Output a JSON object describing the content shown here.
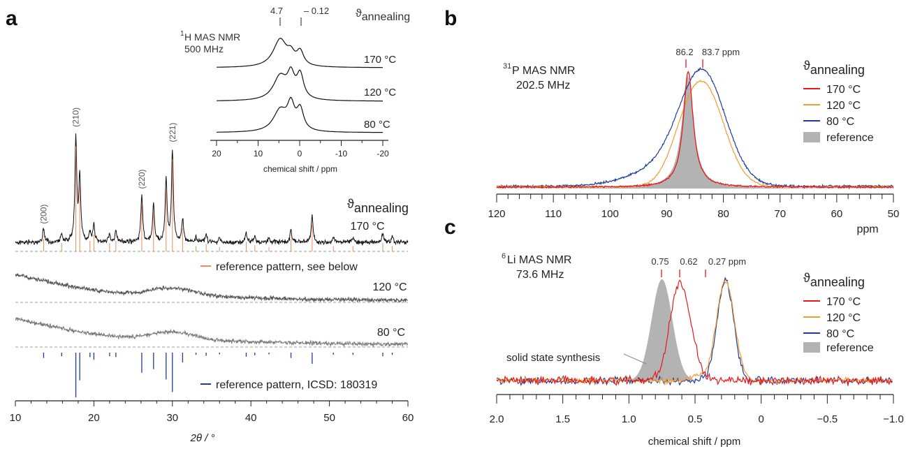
{
  "panels": {
    "a": {
      "letter": "a",
      "xlabel": "2θ / °",
      "annealing_label": "ϑ",
      "annealing_sub": "annealing",
      "traces": [
        "170 °C",
        "120 °C",
        "80 °C"
      ],
      "ref_label_1": "reference pattern, see below",
      "ref_label_2": "reference pattern, ICSD: 180319",
      "xticks": [
        "10",
        "20",
        "30",
        "40",
        "50",
        "60"
      ],
      "hkl": [
        "(200)",
        "(210)",
        "(220)",
        "(221)"
      ],
      "inset": {
        "title_sup": "1",
        "title": "H MAS NMR",
        "freq": "500 MHz",
        "annealing_label": "ϑ",
        "annealing_sub": "annealing",
        "traces": [
          "170 °C",
          "120 °C",
          "80 °C"
        ],
        "peak_labels": [
          "4.7",
          "– 0.12"
        ],
        "xlabel": "chemical shift / ppm",
        "xticks": [
          "20",
          "10",
          "0",
          "-10",
          "-20"
        ]
      }
    },
    "b": {
      "letter": "b",
      "title_sup": "31",
      "title": "P MAS NMR",
      "freq": "202.5 MHz",
      "peak_labels": [
        "86.2",
        "83.7 ppm"
      ],
      "annealing_label": "ϑ",
      "annealing_sub": "annealing",
      "legend": [
        "170 °C",
        "120 °C",
        " 80 °C",
        "reference"
      ],
      "xticks": [
        "120",
        "110",
        "100",
        "90",
        "80",
        "70",
        "60",
        "50"
      ],
      "xunit": "ppm"
    },
    "c": {
      "letter": "c",
      "title_sup": "6",
      "title": "Li MAS NMR",
      "freq": "73.6 MHz",
      "peak_labels": [
        "0.75",
        "0.62",
        "0.27 ppm"
      ],
      "annotation": "solid state synthesis",
      "annealing_label": "ϑ",
      "annealing_sub": "annealing",
      "legend": [
        "170 °C",
        "120 °C",
        " 80 °C",
        "reference"
      ],
      "xticks": [
        "2.0",
        "1.5",
        "1.0",
        "0.5",
        "0",
        "−0.5",
        "−1.0"
      ],
      "xlabel": "chemical shift / ppm"
    }
  },
  "colors": {
    "c170": "#e41a1c",
    "c120": "#f39c32",
    "c80": "#1f3c99",
    "reference_fill": "#b3b3b3",
    "xrd_orange": "#f08a5d",
    "xrd_blue": "#1f3c99"
  },
  "chart_data": [
    {
      "type": "line",
      "panel": "a",
      "xlabel": "2θ / °",
      "xlim": [
        10,
        60
      ],
      "series": [
        {
          "name": "170 °C",
          "peaks_2theta": [
            13.6,
            17.7,
            18.2,
            20.0,
            22.0,
            22.8,
            26.1,
            27.6,
            29.2,
            30.0,
            31.3,
            34.3,
            39.4,
            40.5,
            45.1,
            47.8,
            56.8
          ]
        },
        {
          "name": "120 °C",
          "profile": "amorphous"
        },
        {
          "name": "80 °C",
          "profile": "amorphous"
        }
      ],
      "reference_hkl": [
        {
          "hkl": "(200)",
          "x": 13.6
        },
        {
          "hkl": "(210)",
          "x": 17.7
        },
        {
          "hkl": "(220)",
          "x": 26.1
        },
        {
          "hkl": "(221)",
          "x": 30.0
        }
      ],
      "reference_pattern": [
        {
          "x": 13.6,
          "i": 0.12
        },
        {
          "x": 15.9,
          "i": 0.08
        },
        {
          "x": 17.7,
          "i": 1.0
        },
        {
          "x": 18.2,
          "i": 0.62
        },
        {
          "x": 19.5,
          "i": 0.1
        },
        {
          "x": 20.0,
          "i": 0.16
        },
        {
          "x": 22.0,
          "i": 0.08
        },
        {
          "x": 22.8,
          "i": 0.1
        },
        {
          "x": 26.1,
          "i": 0.45
        },
        {
          "x": 27.6,
          "i": 0.37
        },
        {
          "x": 29.2,
          "i": 0.6
        },
        {
          "x": 30.0,
          "i": 0.88
        },
        {
          "x": 31.3,
          "i": 0.22
        },
        {
          "x": 33.0,
          "i": 0.05
        },
        {
          "x": 34.3,
          "i": 0.07
        },
        {
          "x": 36.0,
          "i": 0.04
        },
        {
          "x": 39.4,
          "i": 0.09
        },
        {
          "x": 40.5,
          "i": 0.06
        },
        {
          "x": 42.3,
          "i": 0.04
        },
        {
          "x": 45.1,
          "i": 0.12
        },
        {
          "x": 47.8,
          "i": 0.25
        },
        {
          "x": 50.5,
          "i": 0.05
        },
        {
          "x": 53.0,
          "i": 0.05
        },
        {
          "x": 56.8,
          "i": 0.08
        },
        {
          "x": 58.0,
          "i": 0.05
        }
      ]
    },
    {
      "type": "line",
      "panel": "a-inset",
      "title": "1H MAS NMR 500 MHz",
      "xlabel": "chemical shift / ppm",
      "xlim": [
        20,
        -20
      ],
      "series": [
        {
          "name": "170 °C",
          "peaks_ppm": [
            4.7,
            2.0,
            -0.12
          ]
        },
        {
          "name": "120 °C",
          "peaks_ppm": [
            4.7,
            2.0,
            -0.12
          ]
        },
        {
          "name": "80 °C",
          "peaks_ppm": [
            4.7,
            2.0,
            -0.12
          ]
        }
      ]
    },
    {
      "type": "line",
      "panel": "b",
      "title": "31P MAS NMR 202.5 MHz",
      "xlabel": "ppm",
      "xlim": [
        120,
        50
      ],
      "series": [
        {
          "name": "170 °C",
          "peak_ppm": 86.2
        },
        {
          "name": "120 °C",
          "peak_ppm": 83.7
        },
        {
          "name": "80 °C",
          "peak_ppm": 83.7
        },
        {
          "name": "reference",
          "peak_ppm": 86.2
        }
      ]
    },
    {
      "type": "line",
      "panel": "c",
      "title": "6Li MAS NMR 73.6 MHz",
      "xlabel": "chemical shift / ppm",
      "xlim": [
        2.0,
        -1.0
      ],
      "series": [
        {
          "name": "170 °C",
          "peak_ppm": 0.62
        },
        {
          "name": "120 °C",
          "peak_ppm": 0.27
        },
        {
          "name": "80 °C",
          "peak_ppm": 0.27
        },
        {
          "name": "reference",
          "peak_ppm": 0.75
        }
      ]
    }
  ]
}
